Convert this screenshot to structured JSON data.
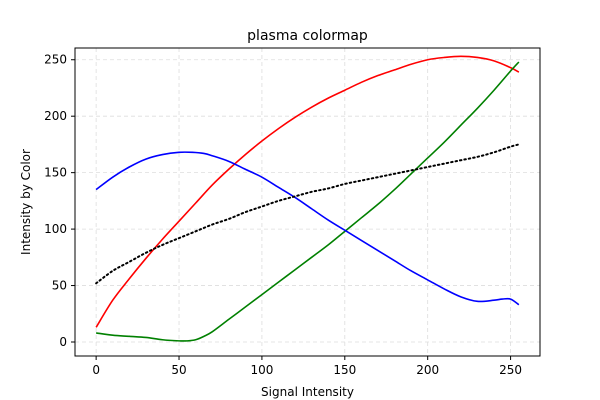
{
  "chart_data": {
    "type": "line",
    "title": "plasma colormap",
    "xlabel": "Signal Intensity",
    "ylabel": "Intensity by Color",
    "xlim": [
      -12.75,
      267.75
    ],
    "ylim": [
      -12.4,
      260.4
    ],
    "grid": true,
    "legend": false,
    "xticks": [
      0,
      50,
      100,
      150,
      200,
      250
    ],
    "xtick_labels": [
      "0",
      "50",
      "100",
      "150",
      "200",
      "250"
    ],
    "yticks": [
      0,
      50,
      100,
      150,
      200,
      250
    ],
    "ytick_labels": [
      "0",
      "50",
      "100",
      "150",
      "200",
      "250"
    ],
    "series": [
      {
        "color": "#ff0000",
        "style": "solid",
        "x": [
          0,
          10,
          20,
          30,
          40,
          50,
          60,
          70,
          80,
          90,
          100,
          110,
          120,
          130,
          140,
          150,
          160,
          170,
          180,
          190,
          200,
          210,
          220,
          230,
          240,
          250,
          255
        ],
        "y": [
          13,
          37,
          56,
          74,
          91,
          107,
          123,
          139,
          153,
          166,
          178,
          189,
          199,
          208,
          216,
          223,
          230,
          236,
          241,
          246,
          250,
          252,
          253,
          252,
          249,
          243,
          239
        ]
      },
      {
        "color": "#008000",
        "style": "solid",
        "x": [
          0,
          10,
          20,
          30,
          40,
          50,
          55,
          60,
          65,
          70,
          80,
          90,
          100,
          110,
          120,
          130,
          140,
          150,
          160,
          170,
          180,
          190,
          200,
          210,
          220,
          230,
          240,
          250,
          255
        ],
        "y": [
          8,
          6,
          5,
          4,
          2,
          1,
          1,
          2,
          5,
          9,
          20,
          31,
          42,
          53,
          64,
          75,
          86,
          98,
          110,
          122,
          135,
          149,
          163,
          177,
          192,
          207,
          223,
          240,
          248
        ]
      },
      {
        "color": "#0000ff",
        "style": "solid",
        "x": [
          0,
          10,
          20,
          30,
          40,
          50,
          58,
          65,
          70,
          80,
          90,
          100,
          110,
          120,
          130,
          140,
          150,
          160,
          170,
          180,
          190,
          200,
          210,
          220,
          230,
          240,
          245,
          250,
          255
        ],
        "y": [
          135,
          146,
          155,
          162,
          166,
          168,
          168,
          167,
          165,
          160,
          153,
          146,
          137,
          128,
          118,
          108,
          99,
          90,
          81,
          72,
          63,
          55,
          47,
          40,
          36,
          37,
          38,
          38,
          33
        ]
      },
      {
        "color": "#000000",
        "style": "dotted",
        "x": [
          0,
          10,
          20,
          30,
          40,
          50,
          60,
          70,
          80,
          90,
          100,
          110,
          120,
          130,
          140,
          150,
          160,
          170,
          180,
          190,
          200,
          210,
          220,
          230,
          240,
          250,
          255
        ],
        "y": [
          52,
          63,
          71,
          79,
          86,
          92,
          98,
          104,
          109,
          115,
          120,
          125,
          129,
          133,
          136,
          140,
          143,
          146,
          149,
          152,
          155,
          158,
          161,
          164,
          168,
          173,
          175
        ]
      }
    ]
  }
}
